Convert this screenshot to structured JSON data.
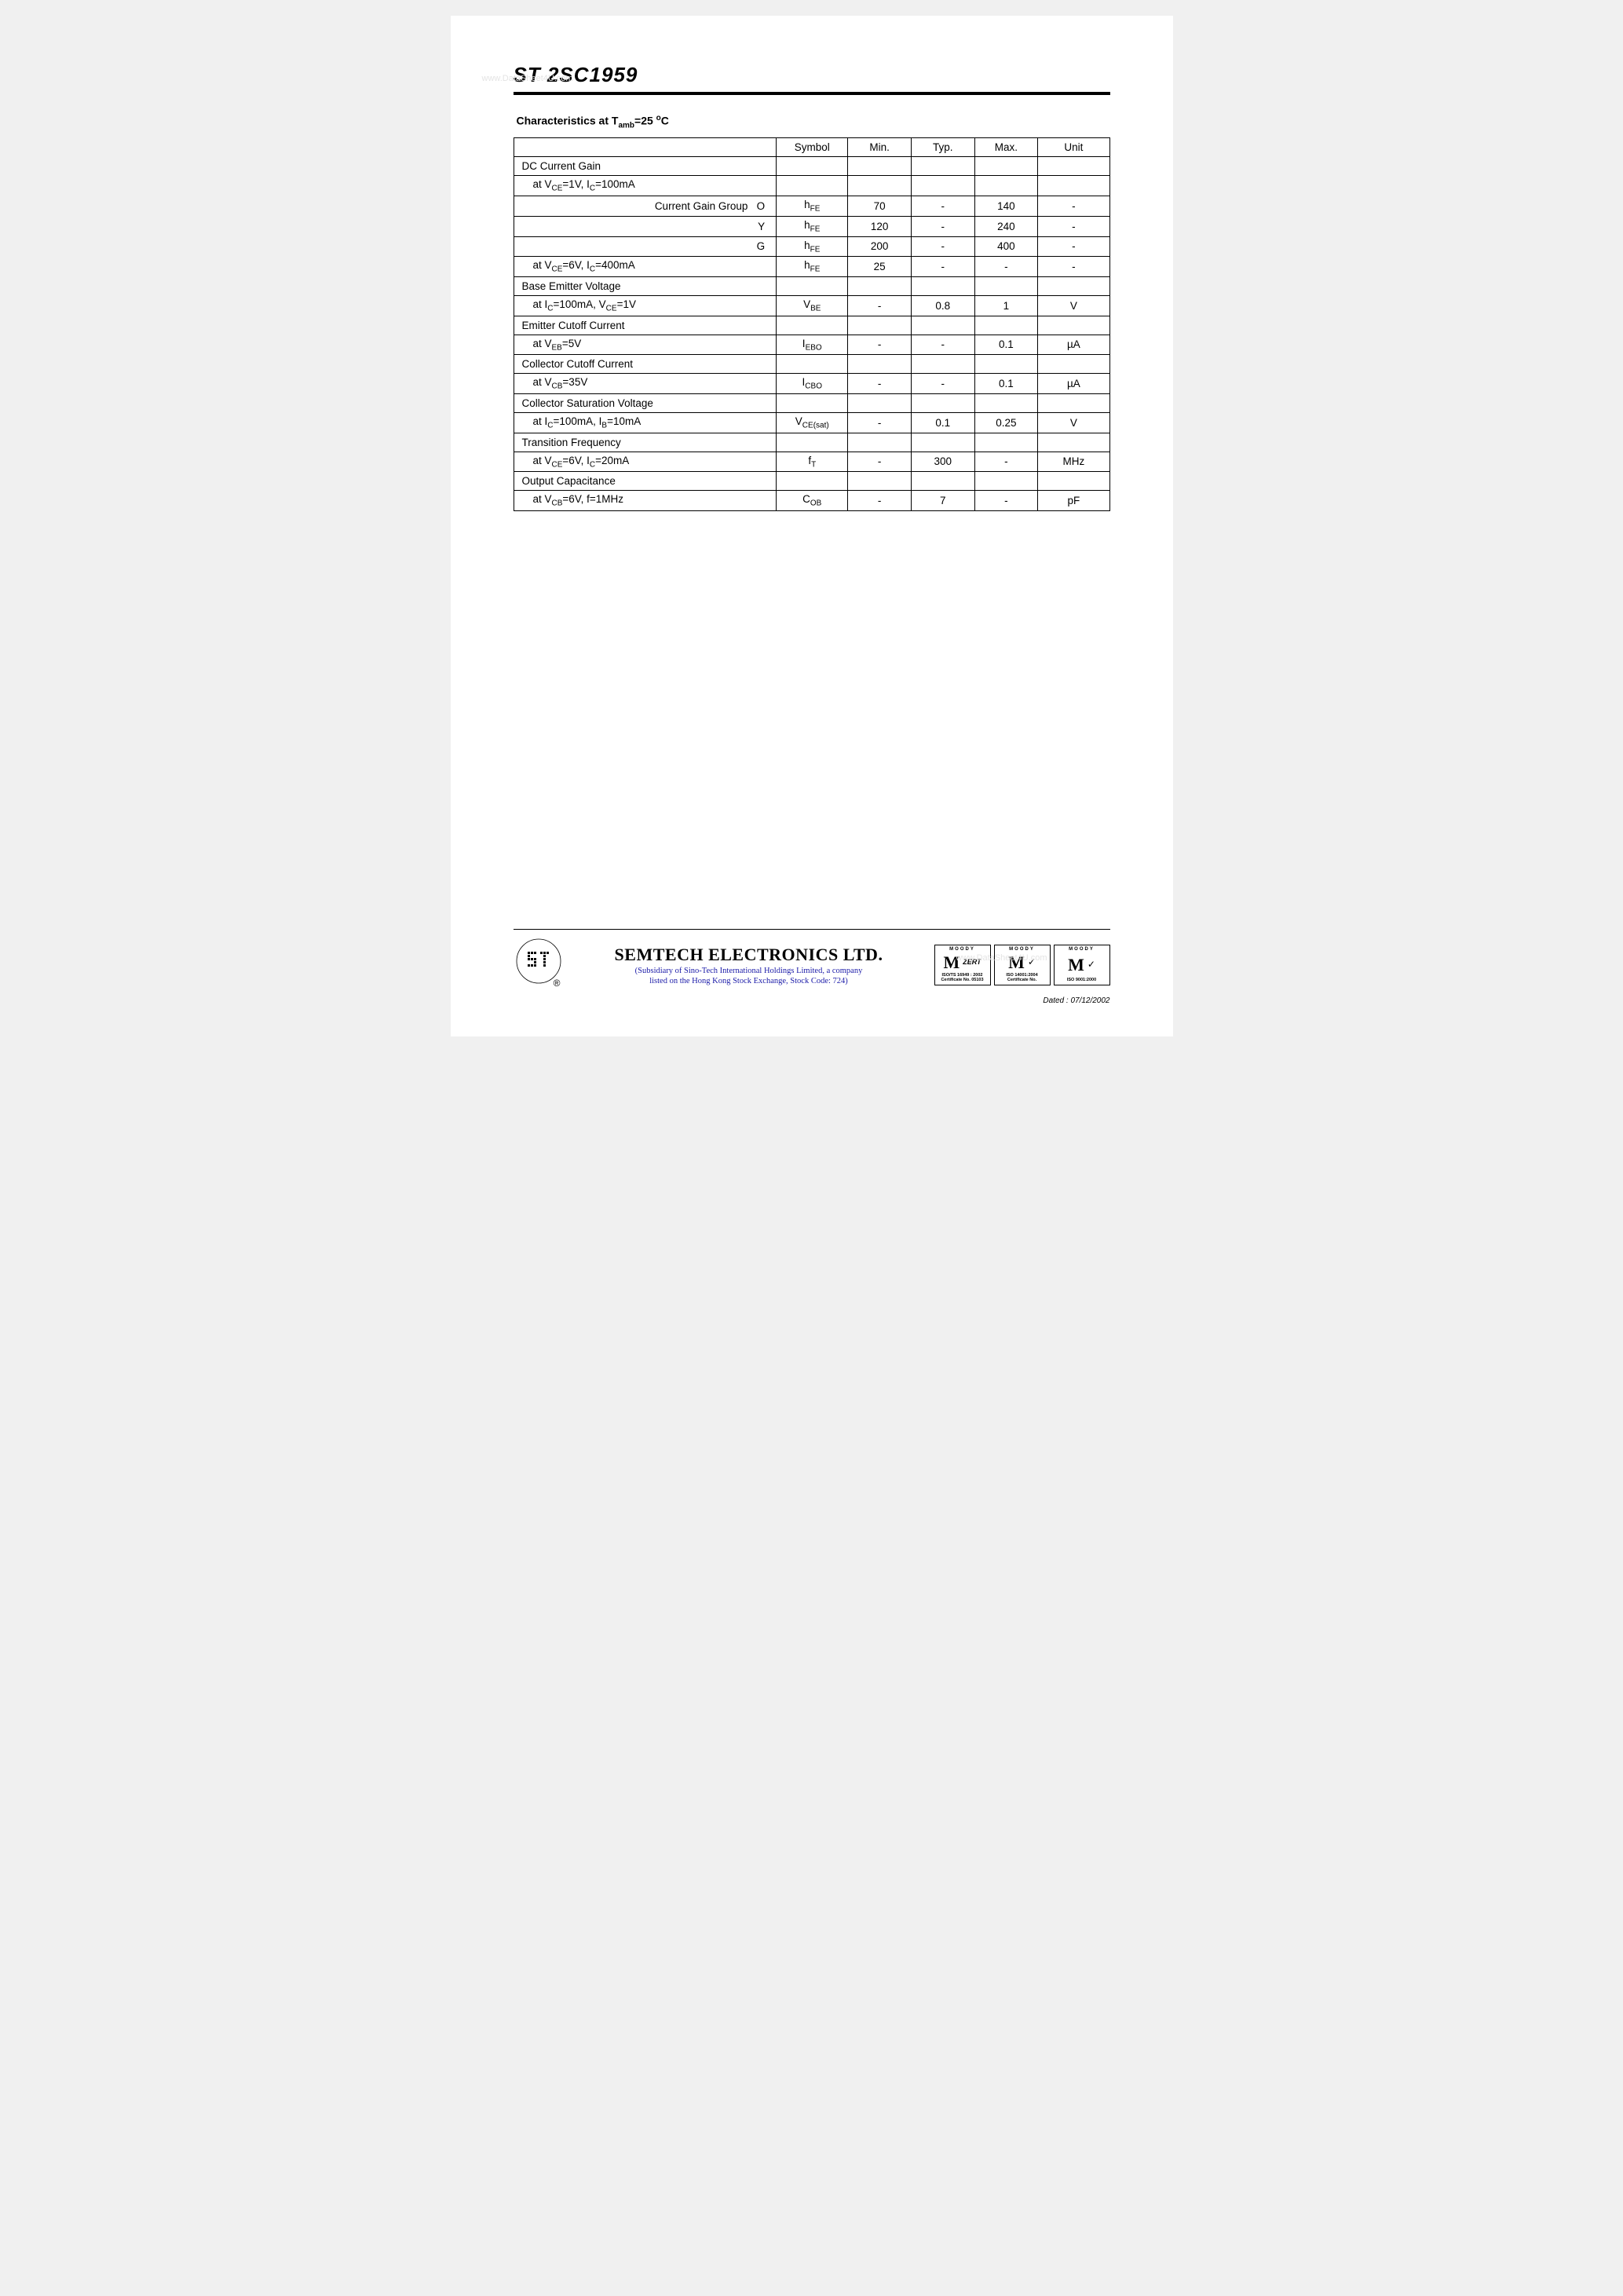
{
  "watermark": "www.DataSheet4U.com",
  "header": {
    "part_number": "ST 2SC1959",
    "section_title_pre": "Characteristics at T",
    "section_title_sub": "amb",
    "section_title_mid": "=25 ",
    "section_title_sup": "o",
    "section_title_post": "C"
  },
  "table": {
    "headers": [
      "",
      "Symbol",
      "Min.",
      "Typ.",
      "Max.",
      "Unit"
    ],
    "rows": [
      {
        "desc_html": "DC Current Gain",
        "sym": "",
        "min": "",
        "typ": "",
        "max": "",
        "unit": "",
        "class": ""
      },
      {
        "desc_html": "at V<sub class='sub'>CE</sub>=1V, I<sub class='sub'>C</sub>=100mA",
        "sym": "",
        "min": "",
        "typ": "",
        "max": "",
        "unit": "",
        "class": "indent1"
      },
      {
        "desc_html": "Current Gain Group&nbsp;&nbsp;&nbsp;O",
        "sym_html": "h<sub class='sub'>FE</sub>",
        "min": "70",
        "typ": "-",
        "max": "140",
        "unit": "-",
        "class": "indent2"
      },
      {
        "desc_html": "Y",
        "sym_html": "h<sub class='sub'>FE</sub>",
        "min": "120",
        "typ": "-",
        "max": "240",
        "unit": "-",
        "class": "indent2"
      },
      {
        "desc_html": "G",
        "sym_html": "h<sub class='sub'>FE</sub>",
        "min": "200",
        "typ": "-",
        "max": "400",
        "unit": "-",
        "class": "indent2"
      },
      {
        "desc_html": "at V<sub class='sub'>CE</sub>=6V, I<sub class='sub'>C</sub>=400mA",
        "sym_html": "h<sub class='sub'>FE</sub>",
        "min": "25",
        "typ": "-",
        "max": "-",
        "unit": "-",
        "class": "indent1"
      },
      {
        "desc_html": "Base Emitter Voltage",
        "sym": "",
        "min": "",
        "typ": "",
        "max": "",
        "unit": "",
        "class": ""
      },
      {
        "desc_html": "at I<sub class='sub'>C</sub>=100mA, V<sub class='sub'>CE</sub>=1V",
        "sym_html": "V<sub class='sub'>BE</sub>",
        "min": "-",
        "typ": "0.8",
        "max": "1",
        "unit": "V",
        "class": "indent1"
      },
      {
        "desc_html": "Emitter Cutoff Current",
        "sym": "",
        "min": "",
        "typ": "",
        "max": "",
        "unit": "",
        "class": ""
      },
      {
        "desc_html": "at V<sub class='sub'>EB</sub>=5V",
        "sym_html": "I<sub class='sub'>EBO</sub>",
        "min": "-",
        "typ": "-",
        "max": "0.1",
        "unit": "µA",
        "class": "indent1"
      },
      {
        "desc_html": "Collector Cutoff Current",
        "sym": "",
        "min": "",
        "typ": "",
        "max": "",
        "unit": "",
        "class": ""
      },
      {
        "desc_html": "at V<sub class='sub'>CB</sub>=35V",
        "sym_html": "I<sub class='sub'>CBO</sub>",
        "min": "-",
        "typ": "-",
        "max": "0.1",
        "unit": "µA",
        "class": "indent1"
      },
      {
        "desc_html": "Collector Saturation Voltage",
        "sym": "",
        "min": "",
        "typ": "",
        "max": "",
        "unit": "",
        "class": ""
      },
      {
        "desc_html": "at I<sub class='sub'>C</sub>=100mA, I<sub class='sub'>B</sub>=10mA",
        "sym_html": "V<sub class='sub'>CE(sat)</sub>",
        "min": "-",
        "typ": "0.1",
        "max": "0.25",
        "unit": "V",
        "class": "indent1"
      },
      {
        "desc_html": "Transition Frequency",
        "sym": "",
        "min": "",
        "typ": "",
        "max": "",
        "unit": "",
        "class": ""
      },
      {
        "desc_html": "at V<sub class='sub'>CE</sub>=6V, I<sub class='sub'>C</sub>=20mA",
        "sym_html": "f<sub class='sub'>T</sub>",
        "min": "-",
        "typ": "300",
        "max": "-",
        "unit": "MHz",
        "class": "indent1"
      },
      {
        "desc_html": "Output Capacitance",
        "sym": "",
        "min": "",
        "typ": "",
        "max": "",
        "unit": "",
        "class": ""
      },
      {
        "desc_html": "at V<sub class='sub'>CB</sub>=6V, f=1MHz",
        "sym_html": "C<sub class='sub'>OB</sub>",
        "min": "-",
        "typ": "7",
        "max": "-",
        "unit": "pF",
        "class": "indent1"
      }
    ]
  },
  "footer": {
    "company": "SEMTECH ELECTRONICS LTD.",
    "sub1": "(Subsidiary of Sino-Tech International Holdings Limited, a company",
    "sub2": "listed on the Hong Kong Stock Exchange, Stock Code: 724)",
    "certs": [
      {
        "top": "MOODY",
        "side": "ZERT",
        "bot": "ISO/TS 16949 : 2002 Certificate No. 05103"
      },
      {
        "top": "MOODY",
        "side": "",
        "bot": "ISO 14001:2004 Certificate No."
      },
      {
        "top": "MOODY",
        "side": "",
        "bot": "ISO 9001:2000"
      }
    ],
    "dated": "Dated : 07/12/2002",
    "registered": "®"
  }
}
